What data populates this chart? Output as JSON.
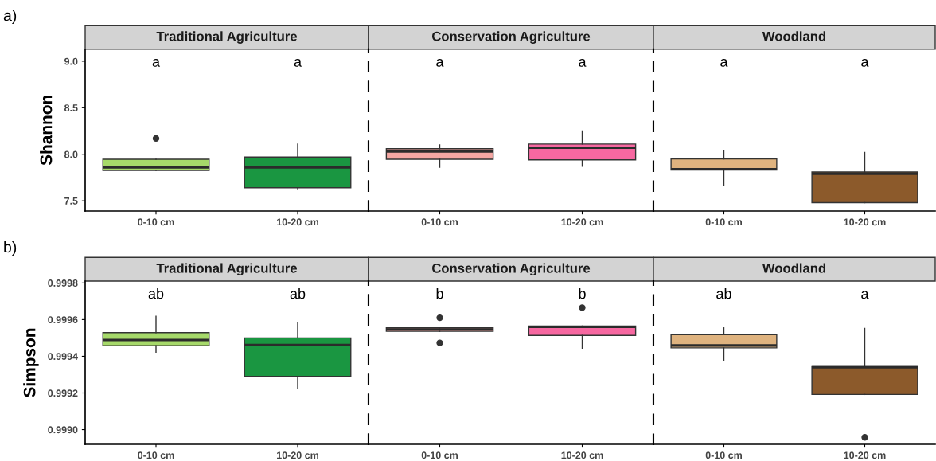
{
  "chart_data": [
    {
      "type": "box",
      "title": "Traditional Agriculture",
      "ylabel": "Shannon",
      "categories": [
        "0-10 cm",
        "10-20 cm"
      ],
      "colors": [
        "#a6d96a",
        "#1a9641"
      ],
      "ylim": [
        7.39,
        9.13
      ],
      "yticks": [
        {
          "value": 7.5,
          "label": "7.5"
        },
        {
          "value": 8,
          "label": "8.0"
        },
        {
          "value": 8.5,
          "label": "8.5"
        },
        {
          "value": 9,
          "label": "9.0"
        }
      ],
      "boxes": [
        {
          "low": 7.826,
          "q1": 7.826,
          "median": 7.858,
          "q3": 7.946,
          "high": 7.946,
          "outliers": [
            8.17
          ]
        },
        {
          "low": 7.62,
          "q1": 7.64,
          "median": 7.86,
          "q3": 7.97,
          "high": 8.11
        }
      ],
      "annotations": [
        "a)",
        "a",
        "a"
      ]
    },
    {
      "type": "box",
      "title": "Conservation Agriculture",
      "categories": [
        "0-10 cm",
        "10-20 cm"
      ],
      "colors": [
        "#f4a7a3",
        "#f768a1"
      ],
      "ylim": [
        7.39,
        9.13
      ],
      "tick_labels": "x",
      "boxes": [
        {
          "low": 7.86,
          "q1": 7.946,
          "median": 8.03,
          "q3": 8.06,
          "high": 8.1
        },
        {
          "low": 7.87,
          "q1": 7.94,
          "median": 8.07,
          "q3": 8.11,
          "high": 8.25
        }
      ],
      "annotations": [
        "a",
        "a"
      ]
    },
    {
      "type": "box",
      "title": "Woodland",
      "categories": [
        "0-10 cm",
        "10-20 cm"
      ],
      "colors": [
        "#dfb37f",
        "#8c5a2b"
      ],
      "ylim": [
        7.39,
        9.13
      ],
      "tick_labels": "x",
      "boxes": [
        {
          "low": 7.67,
          "q1": 7.83,
          "median": 7.84,
          "q3": 7.95,
          "high": 8.04
        },
        {
          "low": 7.48,
          "q1": 7.48,
          "median": 7.79,
          "q3": 7.81,
          "high": 8.02
        }
      ],
      "annotations": [
        "a",
        "a"
      ]
    },
    {
      "type": "box",
      "title": "Traditional Agriculture",
      "ylabel": "Simpson",
      "categories": [
        "0-10 cm",
        "10-20 cm"
      ],
      "colors": [
        "#a6d96a",
        "#1a9641"
      ],
      "ylim": [
        0.99892,
        0.99981
      ],
      "yticks": [
        {
          "value": 0.999,
          "label": "0.9990"
        },
        {
          "value": 0.9992,
          "label": "0.9992"
        },
        {
          "value": 0.9994,
          "label": "0.9994"
        },
        {
          "value": 0.9996,
          "label": "0.9996"
        },
        {
          "value": 0.9998,
          "label": "0.9998"
        }
      ],
      "boxes": [
        {
          "low": 0.999422,
          "q1": 0.999457,
          "median": 0.999489,
          "q3": 0.999529,
          "high": 0.999618
        },
        {
          "low": 0.999226,
          "q1": 0.99929,
          "median": 0.999462,
          "q3": 0.9995,
          "high": 0.999581
        }
      ],
      "annotations": [
        "b)",
        "ab",
        "ab"
      ]
    },
    {
      "type": "box",
      "title": "Conservation Agriculture",
      "categories": [
        "0-10 cm",
        "10-20 cm"
      ],
      "colors": [
        "#f4a7a3",
        "#f768a1"
      ],
      "ylim": [
        0.99892,
        0.99981
      ],
      "tick_labels": "x",
      "boxes": [
        {
          "low": 0.999536,
          "q1": 0.999536,
          "median": 0.999546,
          "q3": 0.999555,
          "high": 0.999555,
          "outliers": [
            0.99961,
            0.999473
          ]
        },
        {
          "low": 0.999444,
          "q1": 0.999514,
          "median": 0.99956,
          "q3": 0.999565,
          "high": 0.999565,
          "outliers": [
            0.999665
          ]
        }
      ],
      "annotations": [
        "b",
        "b"
      ]
    },
    {
      "type": "box",
      "title": "Woodland",
      "categories": [
        "0-10 cm",
        "10-20 cm"
      ],
      "colors": [
        "#dfb37f",
        "#8c5a2b"
      ],
      "ylim": [
        0.99892,
        0.99981
      ],
      "tick_labels": "x",
      "boxes": [
        {
          "low": 0.999379,
          "q1": 0.999446,
          "median": 0.999459,
          "q3": 0.999518,
          "high": 0.999555
        },
        {
          "low": 0.999192,
          "q1": 0.999192,
          "median": 0.99934,
          "q3": 0.999343,
          "high": 0.999552,
          "outliers": [
            0.998958
          ]
        }
      ],
      "annotations": [
        "ab",
        "a"
      ]
    }
  ]
}
